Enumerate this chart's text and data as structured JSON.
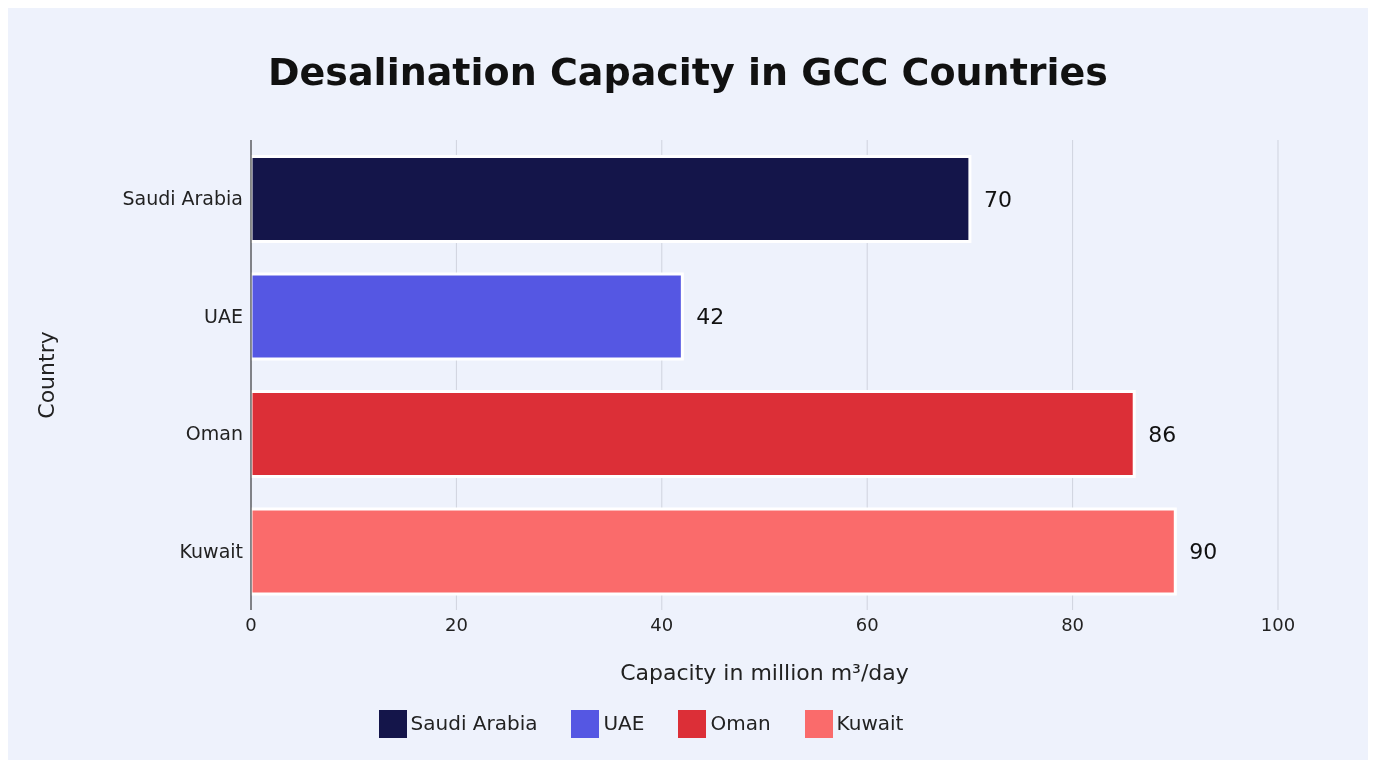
{
  "chart_data": {
    "type": "bar",
    "orientation": "horizontal",
    "stacked": true,
    "title": "Desalination Capacity in GCC Countries",
    "xlabel": "Capacity in million m³/day",
    "ylabel": "Country",
    "categories": [
      "Saudi Arabia",
      "UAE",
      "Oman",
      "Kuwait"
    ],
    "series": [
      {
        "name": "Saudi Arabia",
        "color": "#14154a",
        "values": [
          70,
          null,
          null,
          null
        ]
      },
      {
        "name": "UAE",
        "color": "#5557e3",
        "values": [
          null,
          42,
          null,
          null
        ]
      },
      {
        "name": "Oman",
        "color": "#dc2f37",
        "values": [
          null,
          null,
          86,
          null
        ]
      },
      {
        "name": "Kuwait",
        "color": "#fa6b6b",
        "values": [
          null,
          null,
          null,
          90
        ]
      }
    ],
    "xlim": [
      0,
      100
    ],
    "xticks": [
      0,
      20,
      40,
      60,
      80,
      100
    ],
    "grid": "x",
    "legend": "bottom",
    "data_labels": true
  }
}
